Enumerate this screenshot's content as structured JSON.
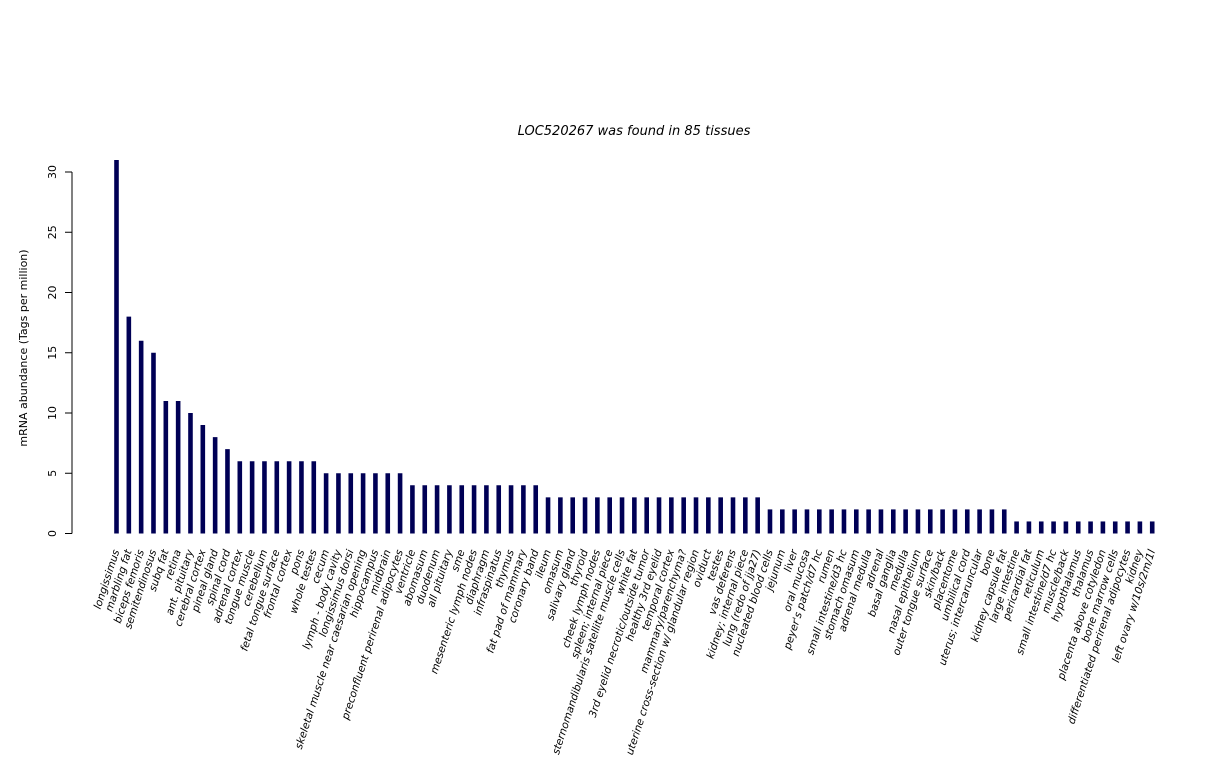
{
  "chart_data": {
    "type": "bar",
    "title": "LOC520267  was found in  85  tissues",
    "xlabel": "",
    "ylabel": "mRNA abundance (Tags per million)",
    "ylim": [
      0,
      31
    ],
    "yticks": [
      0,
      5,
      10,
      15,
      20,
      25,
      30
    ],
    "bar_color": "#000055",
    "categories": [
      "longissimus",
      "marbling fat",
      "biceps femoris",
      "semitendinosus",
      "subq fat",
      "retina",
      "ant. pituitary",
      "cerebral cortex",
      "pineal gland",
      "spinal cord",
      "adrenal cortex",
      "tongue muscle",
      "cerebellum",
      "fetal tongue surface",
      "frontal cortex",
      "pons",
      "whole testes",
      "cecum",
      "lymph - body cavity",
      "longissimus dorsi",
      "skeletal muscle near caesarian opening",
      "hippocampus",
      "midbrain",
      "preconfluent perirenal adipocytes",
      "ventricle",
      "abomasum",
      "duodenum",
      "all pituitary",
      "sme",
      "mesenteric lymph nodes",
      "diaphragm",
      "infraspinatus",
      "thymus",
      "fat pad of mammary",
      "coronary band",
      "ileum",
      "omasum",
      "salivary gland",
      "thyroid",
      "cheek lymph nodes",
      "spleen; internal piece",
      "sternomandibularis satellite muscle cells",
      "white fat",
      "3rd eyelid necrotic/outside tumor",
      "healthy 3rd eyelid",
      "temporal cortex",
      "mammary/parenchyma?",
      "uterine cross-section w/ glandular region",
      "oviduct",
      "testes",
      "vas deferens",
      "kidney; internal piece",
      "lung (redo of jja27)",
      "nucleated blood cells",
      "jejunum",
      "liver",
      "oral mucosa",
      "peyer's patch/d7 hc",
      "rumen",
      "small intestine/d3 hc",
      "stomach omasum",
      "adrenal medulla",
      "adrenal",
      "basal ganglia",
      "medulla",
      "nasal epithelium",
      "outer tongue surface",
      "skin/back",
      "placentome",
      "umbilical cord",
      "uterus; intercaruncular",
      "bone",
      "kidney capsule fat",
      "large intestine",
      "pericardial fat",
      "reticulum",
      "small intestine/d7 hc",
      "muscle/back",
      "hypothalamus",
      "thalamus",
      "placenta above cotyledon",
      "bone marrow cells",
      "differentiated perirenal adipocytes",
      "kidney",
      "left ovary w/10s/2m/1l"
    ],
    "values": [
      31,
      18,
      16,
      15,
      11,
      11,
      10,
      9,
      8,
      7,
      6,
      6,
      6,
      6,
      6,
      6,
      6,
      5,
      5,
      5,
      5,
      5,
      5,
      5,
      4,
      4,
      4,
      4,
      4,
      4,
      4,
      4,
      4,
      4,
      4,
      3,
      3,
      3,
      3,
      3,
      3,
      3,
      3,
      3,
      3,
      3,
      3,
      3,
      3,
      3,
      3,
      3,
      3,
      2,
      2,
      2,
      2,
      2,
      2,
      2,
      2,
      2,
      2,
      2,
      2,
      2,
      2,
      2,
      2,
      2,
      2,
      2,
      2,
      1,
      1,
      1,
      1,
      1,
      1,
      1,
      1,
      1,
      1,
      1,
      1
    ]
  }
}
